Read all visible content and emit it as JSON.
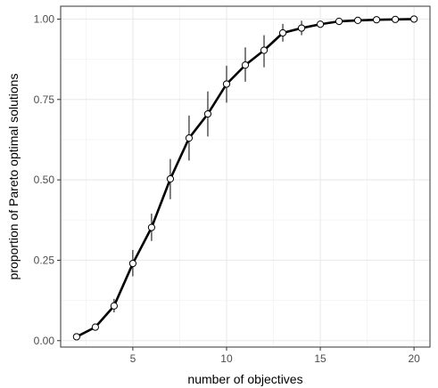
{
  "chart_data": {
    "type": "line",
    "title": "",
    "xlabel": "number of objectives",
    "ylabel": "proportion of Pareto optimal solutions",
    "xlim": [
      1.15,
      20.85
    ],
    "ylim": [
      -0.02,
      1.04
    ],
    "grid": true,
    "x_ticks": [
      5,
      10,
      15,
      20
    ],
    "x_tick_labels": [
      "5",
      "10",
      "15",
      "20"
    ],
    "y_ticks": [
      0,
      0.25,
      0.5,
      0.75,
      1
    ],
    "y_tick_labels": [
      "0.00",
      "0.25",
      "0.50",
      "0.75",
      "1.00"
    ],
    "series": [
      {
        "x": [
          2,
          3,
          4,
          5,
          6,
          7,
          8,
          9,
          10,
          11,
          12,
          13,
          14,
          15,
          16,
          17,
          18,
          19,
          20
        ],
        "y": [
          0.012,
          0.042,
          0.108,
          0.24,
          0.352,
          0.503,
          0.63,
          0.705,
          0.798,
          0.857,
          0.903,
          0.957,
          0.972,
          0.984,
          0.993,
          0.996,
          0.998,
          0.999,
          1.0
        ],
        "err_low": [
          0.01,
          0.037,
          0.088,
          0.2,
          0.31,
          0.44,
          0.56,
          0.635,
          0.74,
          0.805,
          0.85,
          0.93,
          0.95,
          0.975,
          0.988,
          0.993,
          0.996,
          0.998,
          0.999
        ],
        "err_high": [
          0.016,
          0.05,
          0.13,
          0.282,
          0.395,
          0.565,
          0.7,
          0.775,
          0.855,
          0.912,
          0.95,
          0.985,
          0.995,
          0.995,
          0.998,
          1.0,
          1.0,
          1.0,
          1.001
        ]
      }
    ],
    "colors": {
      "line": "#000000",
      "point_fill": "#ffffff",
      "grid_major": "#ebebeb",
      "grid_minor": "#f5f5f5",
      "panel_border": "#333333"
    }
  }
}
